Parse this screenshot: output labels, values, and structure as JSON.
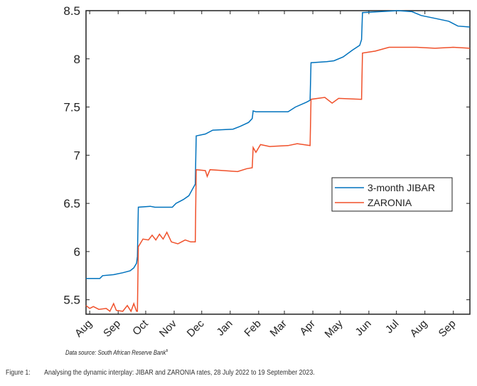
{
  "chart_data": {
    "type": "line",
    "title": "",
    "xlabel": "",
    "ylabel": "",
    "ylim": [
      5.35,
      8.5
    ],
    "xlim_days": [
      0,
      418
    ],
    "x_unit": "days since 28 July 2022",
    "x_ticks": [
      {
        "label": "Aug",
        "day": 4
      },
      {
        "label": "Sep",
        "day": 35
      },
      {
        "label": "Oct",
        "day": 65
      },
      {
        "label": "Nov",
        "day": 96
      },
      {
        "label": "Dec",
        "day": 126
      },
      {
        "label": "Jan",
        "day": 157
      },
      {
        "label": "Feb",
        "day": 188
      },
      {
        "label": "Mar",
        "day": 216
      },
      {
        "label": "Apr",
        "day": 247
      },
      {
        "label": "May",
        "day": 277
      },
      {
        "label": "Jun",
        "day": 308
      },
      {
        "label": "Jul",
        "day": 338
      },
      {
        "label": "Aug",
        "day": 369
      },
      {
        "label": "Sep",
        "day": 400
      }
    ],
    "y_ticks": [
      "5.5",
      "6",
      "6.5",
      "7",
      "7.5",
      "8",
      "8.5"
    ],
    "legend_position": "center-right",
    "series": [
      {
        "name": "3-month JIBAR",
        "color": "#0072BD",
        "points": [
          [
            0,
            5.72
          ],
          [
            15,
            5.72
          ],
          [
            18,
            5.75
          ],
          [
            30,
            5.76
          ],
          [
            40,
            5.78
          ],
          [
            48,
            5.8
          ],
          [
            52,
            5.83
          ],
          [
            55,
            5.88
          ],
          [
            56,
            5.95
          ],
          [
            57,
            6.46
          ],
          [
            70,
            6.47
          ],
          [
            75,
            6.46
          ],
          [
            94,
            6.46
          ],
          [
            98,
            6.5
          ],
          [
            106,
            6.54
          ],
          [
            112,
            6.58
          ],
          [
            116,
            6.65
          ],
          [
            119,
            6.7
          ],
          [
            120,
            7.2
          ],
          [
            130,
            7.22
          ],
          [
            138,
            7.26
          ],
          [
            160,
            7.27
          ],
          [
            168,
            7.3
          ],
          [
            177,
            7.34
          ],
          [
            181,
            7.38
          ],
          [
            182,
            7.46
          ],
          [
            185,
            7.45
          ],
          [
            220,
            7.45
          ],
          [
            228,
            7.5
          ],
          [
            240,
            7.55
          ],
          [
            244,
            7.57
          ],
          [
            245,
            7.96
          ],
          [
            262,
            7.97
          ],
          [
            270,
            7.98
          ],
          [
            280,
            8.02
          ],
          [
            290,
            8.09
          ],
          [
            298,
            8.14
          ],
          [
            300,
            8.2
          ],
          [
            301,
            8.48
          ],
          [
            320,
            8.49
          ],
          [
            340,
            8.5
          ],
          [
            355,
            8.49
          ],
          [
            365,
            8.45
          ],
          [
            380,
            8.42
          ],
          [
            395,
            8.39
          ],
          [
            405,
            8.34
          ],
          [
            418,
            8.33
          ]
        ]
      },
      {
        "name": "ZARONIA",
        "color": "#F0502A",
        "points": [
          [
            0,
            5.44
          ],
          [
            4,
            5.41
          ],
          [
            8,
            5.43
          ],
          [
            14,
            5.4
          ],
          [
            22,
            5.41
          ],
          [
            26,
            5.38
          ],
          [
            30,
            5.46
          ],
          [
            33,
            5.39
          ],
          [
            40,
            5.38
          ],
          [
            45,
            5.44
          ],
          [
            49,
            5.38
          ],
          [
            52,
            5.46
          ],
          [
            55,
            5.38
          ],
          [
            56,
            5.38
          ],
          [
            57,
            6.05
          ],
          [
            62,
            6.13
          ],
          [
            68,
            6.12
          ],
          [
            72,
            6.17
          ],
          [
            76,
            6.12
          ],
          [
            80,
            6.18
          ],
          [
            84,
            6.13
          ],
          [
            88,
            6.2
          ],
          [
            93,
            6.1
          ],
          [
            100,
            6.08
          ],
          [
            108,
            6.12
          ],
          [
            114,
            6.1
          ],
          [
            119,
            6.1
          ],
          [
            120,
            6.85
          ],
          [
            130,
            6.84
          ],
          [
            132,
            6.78
          ],
          [
            135,
            6.85
          ],
          [
            150,
            6.84
          ],
          [
            165,
            6.83
          ],
          [
            175,
            6.86
          ],
          [
            181,
            6.87
          ],
          [
            182,
            7.08
          ],
          [
            185,
            7.03
          ],
          [
            190,
            7.11
          ],
          [
            200,
            7.09
          ],
          [
            220,
            7.1
          ],
          [
            230,
            7.12
          ],
          [
            244,
            7.1
          ],
          [
            245,
            7.58
          ],
          [
            260,
            7.6
          ],
          [
            268,
            7.54
          ],
          [
            275,
            7.59
          ],
          [
            300,
            7.58
          ],
          [
            301,
            8.06
          ],
          [
            315,
            8.08
          ],
          [
            330,
            8.12
          ],
          [
            360,
            8.12
          ],
          [
            380,
            8.11
          ],
          [
            400,
            8.12
          ],
          [
            418,
            8.11
          ]
        ]
      }
    ]
  },
  "source": "Data source: South African Reserve Bank",
  "source_sup": "6",
  "caption": {
    "label": "Figure 1:",
    "text": "Analysing the dynamic interplay: JIBAR and ZARONIA rates, 28 July 2022 to 19 September 2023."
  }
}
